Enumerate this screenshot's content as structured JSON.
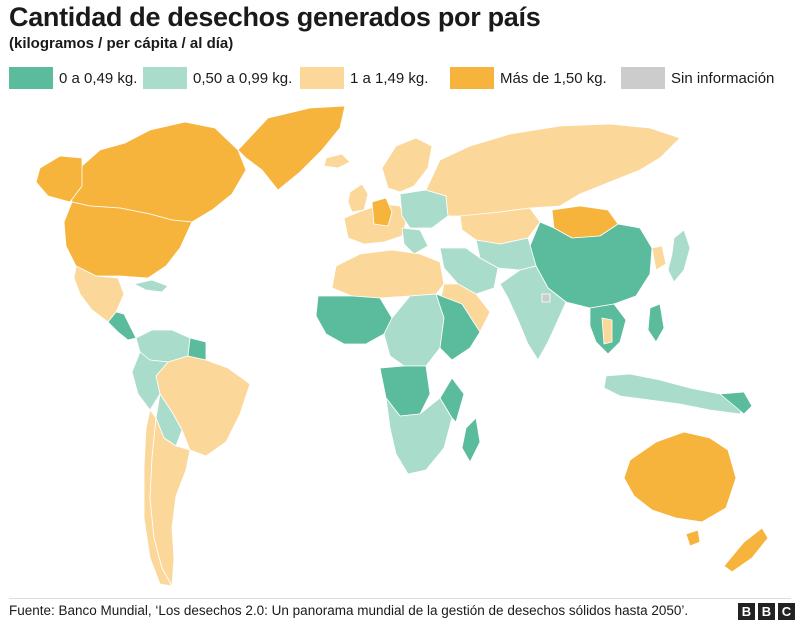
{
  "title": "Cantidad de desechos generados por país",
  "subtitle": "(kilogramos / per cápita / al día)",
  "legend": [
    {
      "label": "0 a 0,49 kg.",
      "color": "#5bbc9d"
    },
    {
      "label": "0,50 a 0,99 kg.",
      "color": "#a9dccb"
    },
    {
      "label": "1 a 1,49 kg.",
      "color": "#fbd89a"
    },
    {
      "label": "Más de 1,50 kg.",
      "color": "#f6b43c"
    },
    {
      "label": "Sin información",
      "color": "#cccccc"
    }
  ],
  "footer": "Fuente: Banco Mundial, ‘Los desechos 2.0: Un panorama mundial de la gestión de desechos sólidos hasta 2050’.",
  "logo": [
    "B",
    "B",
    "C"
  ]
}
